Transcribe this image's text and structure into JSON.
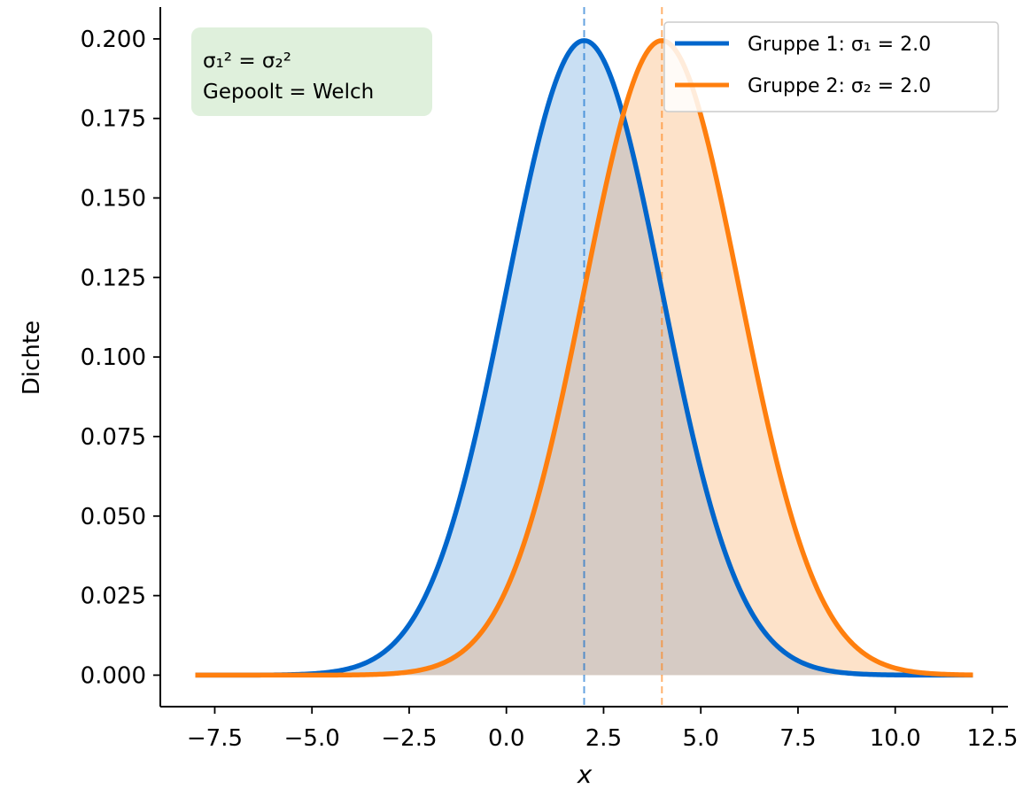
{
  "chart_data": {
    "type": "line",
    "title": "",
    "xlabel": "x",
    "ylabel": "Dichte",
    "xlim": [
      -8.9,
      12.9
    ],
    "ylim": [
      -0.0099,
      0.21
    ],
    "xticks": [
      -7.5,
      -5.0,
      -2.5,
      0.0,
      2.5,
      5.0,
      7.5,
      10.0,
      12.5
    ],
    "xtick_labels": [
      "−7.5",
      "−5.0",
      "−2.5",
      "0.0",
      "2.5",
      "5.0",
      "7.5",
      "10.0",
      "12.5"
    ],
    "yticks": [
      0.0,
      0.025,
      0.05,
      0.075,
      0.1,
      0.125,
      0.15,
      0.175,
      0.2
    ],
    "ytick_labels": [
      "0.000",
      "0.025",
      "0.050",
      "0.075",
      "0.100",
      "0.125",
      "0.150",
      "0.175",
      "0.200"
    ],
    "x_range": [
      -8,
      12
    ],
    "grid": false,
    "legend_position": "top-right",
    "series": [
      {
        "name": "Gruppe 1: σ₁ = 2.0",
        "distribution": "normal",
        "mean": 2.0,
        "sd": 2.0,
        "color": "#0066cc",
        "fill_color": "#c9dff3",
        "fill": true,
        "mean_line": true
      },
      {
        "name": "Gruppe 2: σ₂ = 2.0",
        "distribution": "normal",
        "mean": 4.0,
        "sd": 2.0,
        "color": "#ff7f0e",
        "fill_color": "#fde2c9",
        "fill": true,
        "mean_line": true
      }
    ],
    "overlap_fill_color": "#d6cbc4",
    "annotation": {
      "line1": "σ₁² = σ₂²",
      "line2": "Gepoolt = Welch",
      "background": "#dff0dc"
    }
  }
}
